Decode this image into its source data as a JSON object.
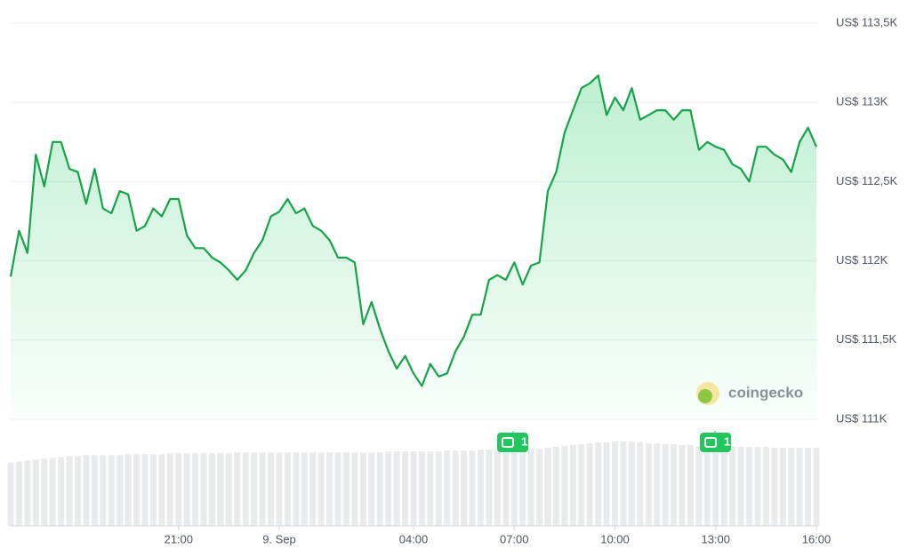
{
  "chart_data": {
    "type": "area",
    "ylim": [
      111000,
      113500
    ],
    "yticks": [
      {
        "value": 111000,
        "label": "US$ 111K"
      },
      {
        "value": 111500,
        "label": "US$ 111,5K"
      },
      {
        "value": 112000,
        "label": "US$ 112K"
      },
      {
        "value": 112500,
        "label": "US$ 112,5K"
      },
      {
        "value": 113000,
        "label": "US$ 113K"
      },
      {
        "value": 113500,
        "label": "US$ 113,5K"
      }
    ],
    "grid": true,
    "color": "#16a34a",
    "categories": [
      null,
      null,
      null,
      null,
      null,
      null,
      null,
      null,
      null,
      null,
      null,
      null,
      null,
      null,
      null,
      null,
      null,
      null,
      null,
      null,
      "21:00",
      null,
      null,
      null,
      null,
      null,
      null,
      null,
      null,
      null,
      null,
      null,
      "9. Sep",
      null,
      null,
      null,
      null,
      null,
      null,
      null,
      null,
      null,
      null,
      null,
      null,
      null,
      null,
      null,
      "04:00",
      null,
      null,
      null,
      null,
      null,
      null,
      null,
      null,
      null,
      null,
      null,
      "07:00",
      null,
      null,
      null,
      null,
      null,
      null,
      null,
      null,
      null,
      null,
      null,
      "10:00",
      null,
      null,
      null,
      null,
      null,
      null,
      null,
      null,
      null,
      null,
      null,
      "13:00",
      null,
      null,
      null,
      null,
      null,
      null,
      null,
      null,
      null,
      null,
      null,
      "16:00"
    ],
    "values": [
      111900,
      112190,
      112050,
      112670,
      112470,
      112750,
      112750,
      112580,
      112560,
      112360,
      112580,
      112330,
      112300,
      112440,
      112420,
      112190,
      112220,
      112330,
      112280,
      112390,
      112390,
      112160,
      112080,
      112080,
      112020,
      111990,
      111940,
      111880,
      111940,
      112050,
      112130,
      112280,
      112310,
      112390,
      112300,
      112330,
      112220,
      112190,
      112130,
      112020,
      112020,
      111990,
      111600,
      111740,
      111570,
      111430,
      111320,
      111400,
      111290,
      111210,
      111350,
      111270,
      111290,
      111430,
      111520,
      111660,
      111660,
      111880,
      111910,
      111880,
      111990,
      111850,
      111970,
      111990,
      112440,
      112560,
      112810,
      112950,
      113090,
      113120,
      113170,
      112920,
      113030,
      112950,
      113090,
      112890,
      112920,
      112950,
      112950,
      112890,
      112950,
      112950,
      112700,
      112750,
      112720,
      112700,
      112610,
      112580,
      112500,
      112720,
      112720,
      112670,
      112640,
      112560,
      112750,
      112840,
      112720
    ],
    "volume": [
      70,
      71,
      72,
      73,
      74,
      75,
      76,
      77,
      77,
      78,
      78,
      78,
      78,
      78,
      79,
      79,
      79,
      79,
      79,
      80,
      80,
      80,
      80,
      80,
      80,
      80,
      80,
      81,
      81,
      81,
      81,
      81,
      81,
      81,
      81,
      81,
      81,
      81,
      81,
      81,
      81,
      81,
      81,
      81,
      81,
      82,
      82,
      82,
      82,
      82,
      82,
      82,
      83,
      83,
      83,
      83,
      84,
      84,
      84,
      84,
      84,
      85,
      85,
      85,
      86,
      87,
      88,
      89,
      90,
      91,
      92,
      92,
      93,
      93,
      93,
      92,
      91,
      91,
      90,
      90,
      89,
      89,
      88,
      88,
      88,
      88,
      88,
      87,
      87,
      87,
      87,
      86,
      86,
      86,
      86,
      86,
      86
    ],
    "volume_color": "#e9eaed",
    "events": [
      "1",
      "1"
    ],
    "watermark": "coingecko"
  }
}
